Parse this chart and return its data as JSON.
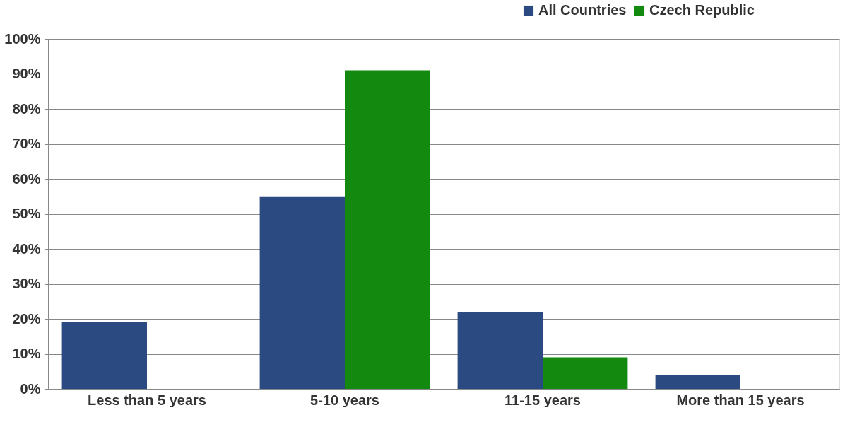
{
  "chart_data": {
    "type": "bar",
    "categories": [
      "Less than 5 years",
      "5-10 years",
      "11-15 years",
      "More than 15 years"
    ],
    "series": [
      {
        "name": "All Countries",
        "color": "#2b4a82",
        "values": [
          19,
          55,
          22,
          4
        ]
      },
      {
        "name": "Czech Republic",
        "color": "#138a0f",
        "values": [
          0,
          91,
          9,
          0
        ]
      }
    ],
    "ylim": [
      0,
      100
    ],
    "yticks": [
      {
        "value": 0,
        "label": "0%"
      },
      {
        "value": 10,
        "label": "10%"
      },
      {
        "value": 20,
        "label": "20%"
      },
      {
        "value": 30,
        "label": "30%"
      },
      {
        "value": 40,
        "label": "40%"
      },
      {
        "value": 50,
        "label": "50%"
      },
      {
        "value": 60,
        "label": "60%"
      },
      {
        "value": 70,
        "label": "70%"
      },
      {
        "value": 80,
        "label": "80%"
      },
      {
        "value": 90,
        "label": "90%"
      },
      {
        "value": 100,
        "label": "100%"
      }
    ],
    "grid": "y",
    "legend": "top right"
  }
}
